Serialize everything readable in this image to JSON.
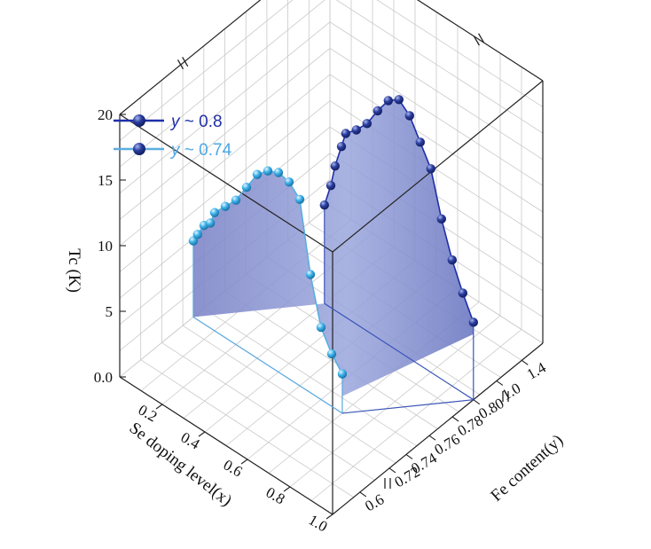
{
  "chart_data": {
    "type": "scatter",
    "zlabel": "Tc (K)",
    "xlabel": "Se doping level(x)",
    "ylabel": "Fe content(y)",
    "z_ticks": [
      "0.0",
      "5",
      "10",
      "15",
      "20"
    ],
    "x_ticks": [
      "0.2",
      "0.4",
      "0.6",
      "0.8",
      "1.0"
    ],
    "y_ticks": [
      "0.6",
      "0.72",
      "0.74",
      "0.76",
      "0.78",
      "0.80",
      "1.0",
      "1.4"
    ],
    "zlim": [
      0,
      20
    ],
    "xlim": [
      0,
      1
    ],
    "grid": true,
    "legend": "top-left",
    "series": [
      {
        "name_var": "y",
        "name_rest": " ~ 0.8",
        "color": "#1f2fa8",
        "marker_color": "#26399c",
        "fe_content": 0.8,
        "x": [
          0.3,
          0.33,
          0.35,
          0.38,
          0.4,
          0.45,
          0.5,
          0.55,
          0.6,
          0.65,
          0.7,
          0.75,
          0.8,
          0.85,
          0.9,
          0.95,
          1.0
        ],
        "y": [
          7.5,
          9.3,
          11.0,
          12.8,
          14.0,
          14.8,
          15.8,
          17.3,
          18.6,
          19.2,
          18.5,
          17.0,
          15.5,
          12.2,
          9.6,
          7.6,
          5.9
        ]
      },
      {
        "name_var": "y",
        "name_rest": " ~ 0.74",
        "color": "#5aaee0",
        "marker_color": "#45b2e6",
        "fe_content": 0.74,
        "x": [
          0.0,
          0.02,
          0.05,
          0.08,
          0.1,
          0.15,
          0.2,
          0.25,
          0.3,
          0.35,
          0.4,
          0.45,
          0.5,
          0.55,
          0.6,
          0.65,
          0.7
        ],
        "y": [
          5.8,
          6.5,
          7.5,
          8.0,
          9.0,
          10.0,
          11.0,
          12.5,
          14.0,
          14.8,
          15.2,
          15.0,
          14.2,
          9.0,
          5.5,
          4.0,
          3.0
        ]
      }
    ]
  }
}
